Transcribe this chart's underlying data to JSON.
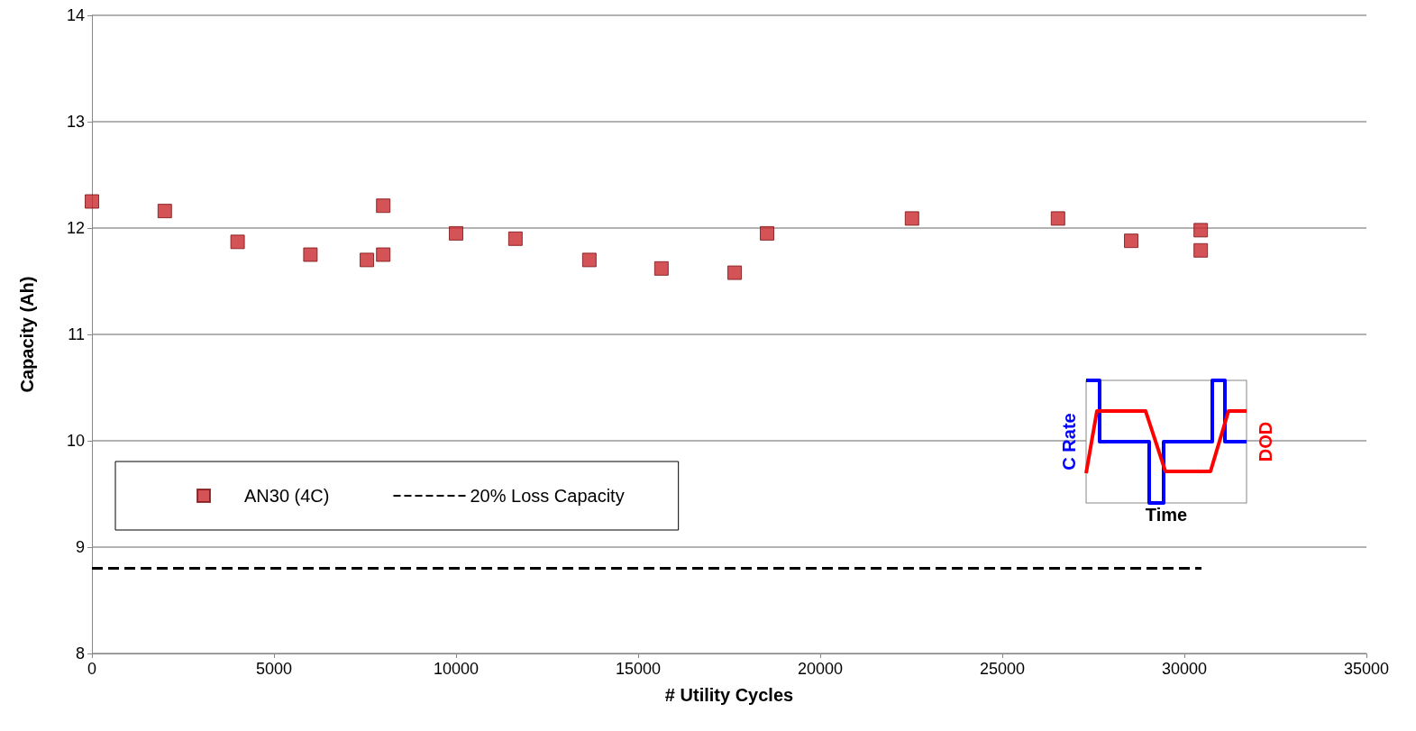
{
  "chart_data": {
    "type": "scatter",
    "xlabel": "# Utility Cycles",
    "ylabel": "Capacity (Ah)",
    "xlim": [
      0,
      35000
    ],
    "xticks": [
      0,
      5000,
      10000,
      15000,
      20000,
      25000,
      30000,
      35000
    ],
    "ylim": [
      8,
      14
    ],
    "yticks": [
      8,
      9,
      10,
      11,
      12,
      13,
      14
    ],
    "grid": "y",
    "legend": "bottom left",
    "series": [
      {
        "name": "AN30 (4C)",
        "color": "#c8282c",
        "marker": "square",
        "x": [
          0,
          2000,
          4000,
          6000,
          7550,
          8000,
          8000,
          10000,
          11630,
          13660,
          15640,
          17650,
          18540,
          22520,
          26530,
          28540,
          30450,
          30450
        ],
        "values": [
          12.25,
          12.16,
          11.87,
          11.75,
          11.7,
          12.21,
          11.75,
          11.95,
          11.9,
          11.7,
          11.62,
          11.58,
          11.95,
          12.09,
          12.09,
          11.88,
          11.98,
          11.79
        ]
      },
      {
        "name": "20% Loss Capacity",
        "type": "line",
        "color": "#000000",
        "line_style": "dashed",
        "marker": "none",
        "x": [
          0,
          30470
        ],
        "values": [
          8.8,
          8.8
        ]
      }
    ],
    "annotations": [
      "C Rate",
      "DOD",
      "Time"
    ]
  }
}
